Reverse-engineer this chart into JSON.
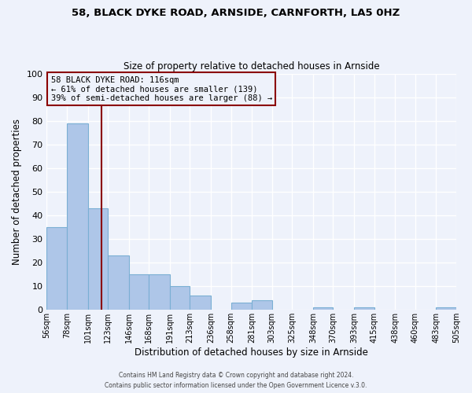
{
  "title1": "58, BLACK DYKE ROAD, ARNSIDE, CARNFORTH, LA5 0HZ",
  "title2": "Size of property relative to detached houses in Arnside",
  "xlabel": "Distribution of detached houses by size in Arnside",
  "ylabel": "Number of detached properties",
  "footer1": "Contains HM Land Registry data © Crown copyright and database right 2024.",
  "footer2": "Contains public sector information licensed under the Open Government Licence v.3.0.",
  "annotation_line1": "58 BLACK DYKE ROAD: 116sqm",
  "annotation_line2": "← 61% of detached houses are smaller (139)",
  "annotation_line3": "39% of semi-detached houses are larger (88) →",
  "property_size": 116,
  "bar_edges": [
    56,
    78,
    101,
    123,
    146,
    168,
    191,
    213,
    236,
    258,
    281,
    303,
    325,
    348,
    370,
    393,
    415,
    438,
    460,
    483,
    505
  ],
  "bar_heights": [
    35,
    79,
    43,
    23,
    15,
    15,
    10,
    6,
    0,
    3,
    4,
    0,
    0,
    1,
    0,
    1,
    0,
    0,
    0,
    1
  ],
  "bar_color": "#aec6e8",
  "bar_edge_color": "#7aafd4",
  "vline_color": "#8b0000",
  "background_color": "#eef2fb",
  "grid_color": "#ffffff",
  "ylim": [
    0,
    100
  ],
  "xlim": [
    56,
    505
  ],
  "yticks": [
    0,
    10,
    20,
    30,
    40,
    50,
    60,
    70,
    80,
    90,
    100
  ]
}
